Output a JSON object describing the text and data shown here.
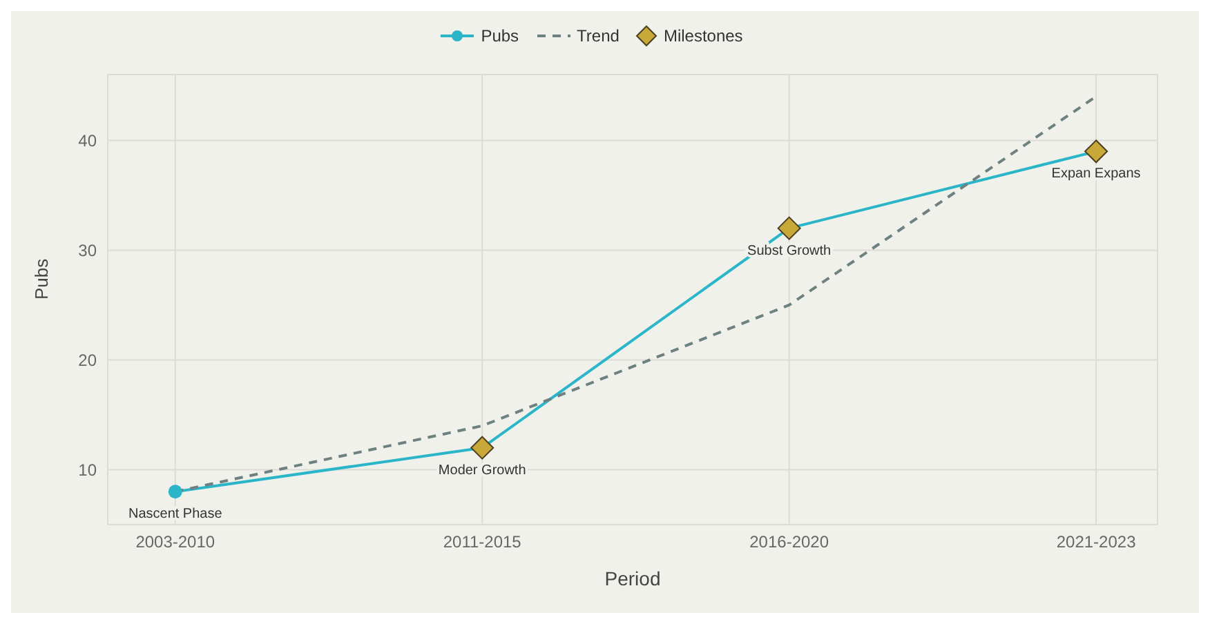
{
  "chart_data": {
    "type": "line",
    "xlabel": "Period",
    "ylabel": "Pubs",
    "categories": [
      "2003-2010",
      "2011-2015",
      "2016-2020",
      "2021-2023"
    ],
    "series": [
      {
        "name": "Pubs",
        "color": "#2bb5c8",
        "values": [
          8,
          12,
          32,
          39
        ],
        "marker": "circle",
        "line_style": "solid"
      },
      {
        "name": "Trend",
        "color": "#6e8080",
        "values": [
          8,
          14,
          25,
          44
        ],
        "marker": "none",
        "line_style": "dashed"
      },
      {
        "name": "Milestones",
        "type": "scatter",
        "color": "#c9a83a",
        "x": [
          "2011-2015",
          "2016-2020",
          "2021-2023"
        ],
        "values": [
          12,
          32,
          39
        ],
        "marker": "diamond"
      }
    ],
    "annotations": [
      {
        "text": "Nascent Phase",
        "x": "2003-2010",
        "y": 8
      },
      {
        "text": "Moder Growth",
        "x": "2011-2015",
        "y": 12
      },
      {
        "text": "Subst Growth",
        "x": "2016-2020",
        "y": 32
      },
      {
        "text": "Expan Expans",
        "x": "2021-2023",
        "y": 39
      }
    ],
    "ylim": [
      5,
      46
    ],
    "yticks": [
      10,
      20,
      30,
      40
    ],
    "grid": true,
    "legend": "top"
  }
}
